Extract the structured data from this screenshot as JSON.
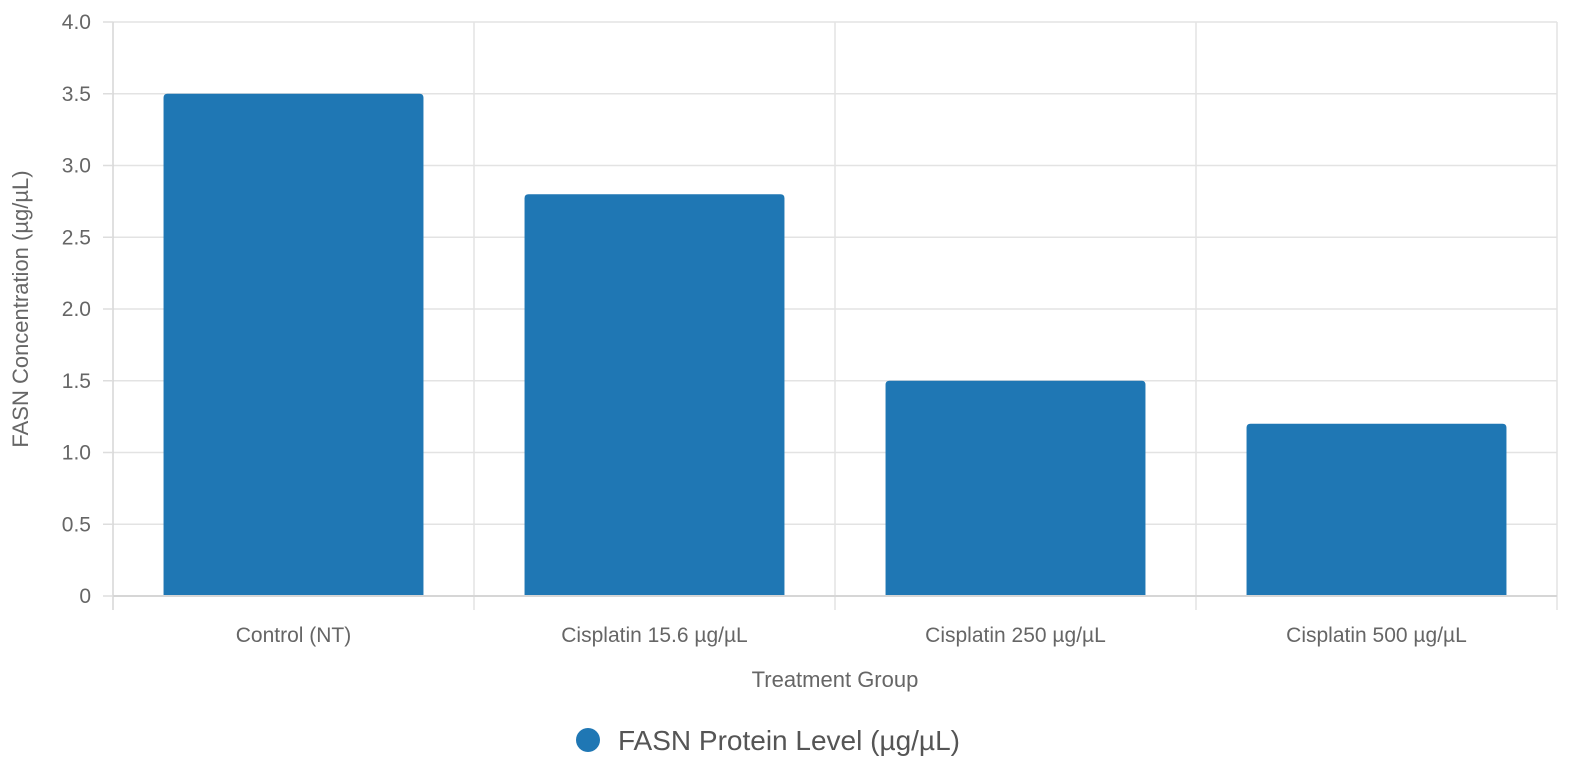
{
  "chart_data": {
    "type": "bar",
    "title": "",
    "xlabel": "Treatment Group",
    "ylabel": "FASN Concentration (µg/µL)",
    "categories": [
      "Control (NT)",
      "Cisplatin 15.6 µg/µL",
      "Cisplatin 250 µg/µL",
      "Cisplatin 500 µg/µL"
    ],
    "series": [
      {
        "name": "FASN Protein Level (µg/µL)",
        "values": [
          3.5,
          2.8,
          1.5,
          1.2
        ],
        "color": "#1f77b4"
      }
    ],
    "ylim": [
      0,
      4.0
    ],
    "yticks": [
      "0",
      "0.5",
      "1.0",
      "1.5",
      "2.0",
      "2.5",
      "3.0",
      "3.5",
      "4.0"
    ],
    "grid": true,
    "legend_position": "bottom"
  }
}
